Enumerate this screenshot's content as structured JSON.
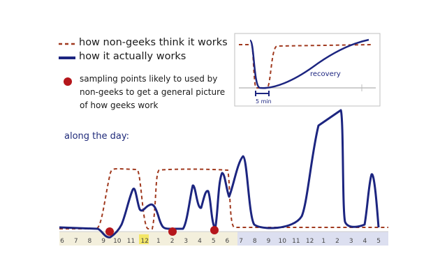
{
  "legend": {
    "dashed_label": "how non-geeks think it works",
    "solid_label": "how it actually works",
    "dot_label": "sampling points likely to used by non-geeks to get a general picture of how geeks work"
  },
  "inset": {
    "recovery_label": "recovery",
    "duration_label": "5 min"
  },
  "day_label": "along the day:",
  "timeline": {
    "hours": [
      "6",
      "7",
      "8",
      "9",
      "10",
      "11",
      "12",
      "1",
      "2",
      "3",
      "4",
      "5",
      "6",
      "7",
      "8",
      "9",
      "10",
      "11",
      "12",
      "1",
      "2",
      "3",
      "4",
      "5"
    ]
  },
  "colors": {
    "dashed": "#a0391e",
    "solid": "#1c2580",
    "dot": "#b5161b",
    "day_band": "#f3efdc",
    "night_band": "#dcdff0",
    "noon_highlight": "#f2e34a"
  }
}
